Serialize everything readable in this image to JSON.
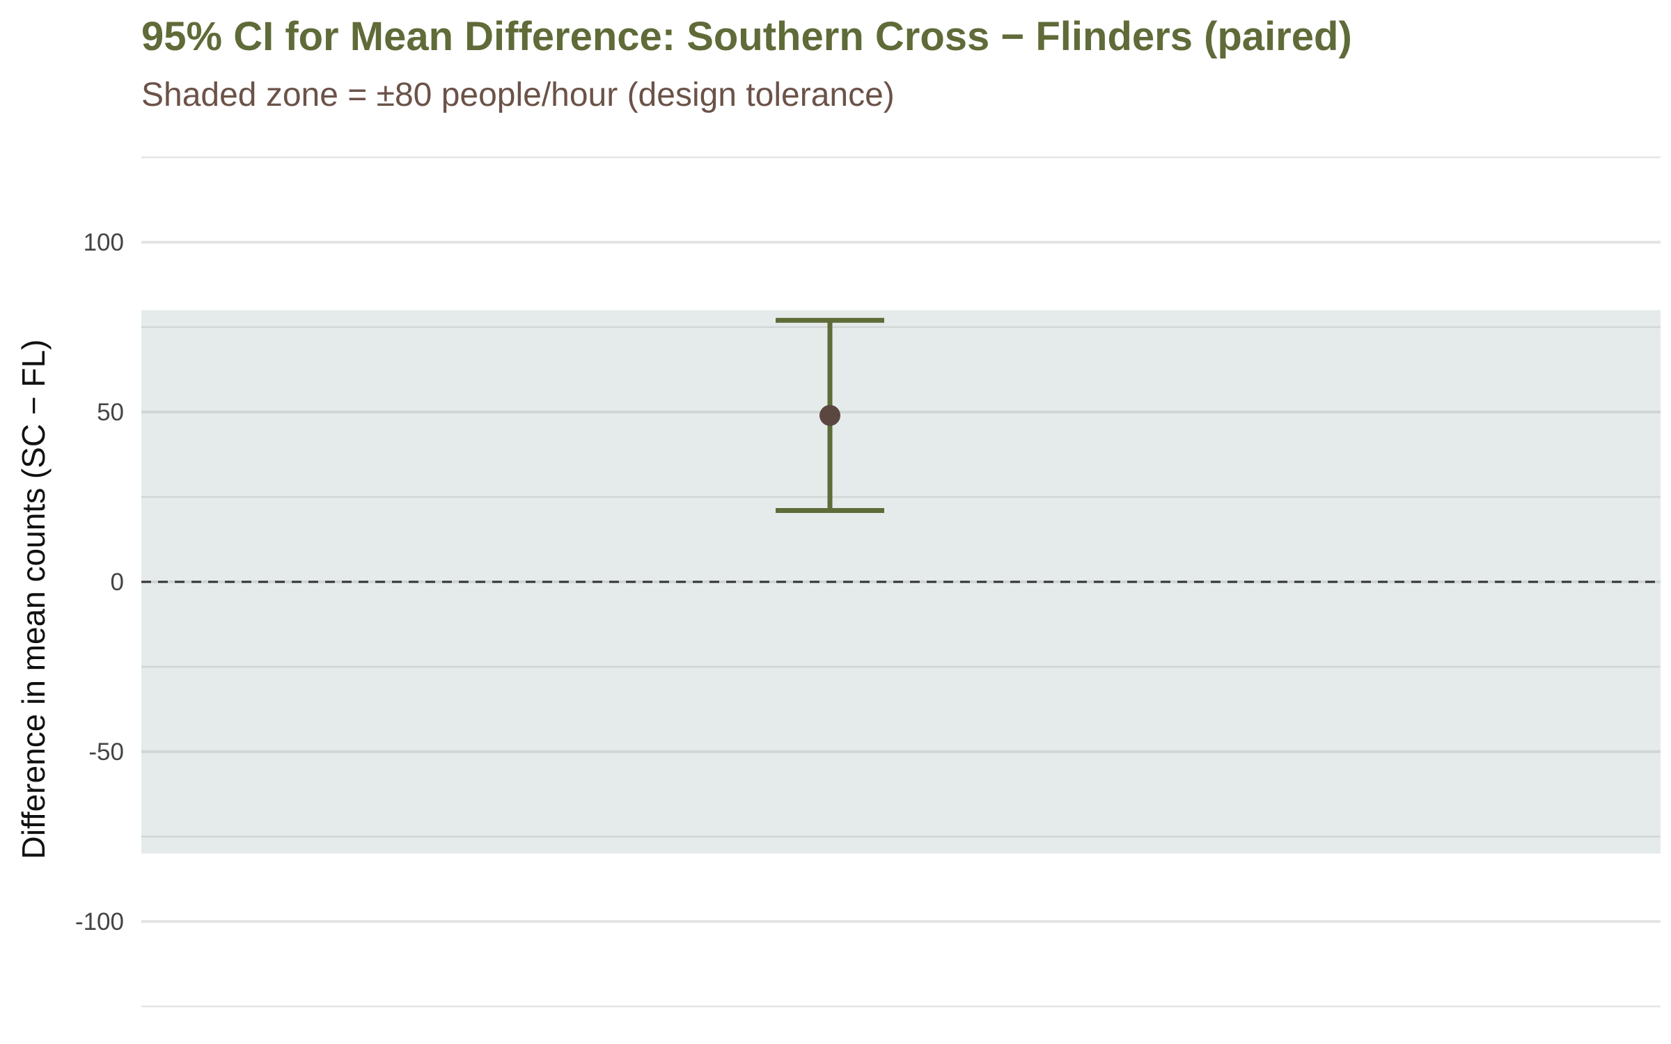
{
  "chart_data": {
    "type": "errorbar",
    "title": "95% CI for Mean Difference: Southern Cross − Flinders (paired)",
    "subtitle": "Shaded zone = ±80 people/hour (design tolerance)",
    "xlabel": "",
    "ylabel": "Difference in mean counts (SC − FL)",
    "ylim": [
      -125,
      125
    ],
    "y_ticks": [
      -100,
      -50,
      0,
      50,
      100
    ],
    "y_tick_labels": [
      "-100",
      "-50",
      "0",
      "50",
      "100"
    ],
    "grid": true,
    "estimate": 49,
    "ci_lower": 21,
    "ci_upper": 77,
    "tolerance_band": [
      -80,
      80
    ],
    "reference_line": 0,
    "colors": {
      "title": "#5f6b38",
      "subtitle": "#6b5248",
      "errorbar": "#5f6b38",
      "point": "#5b4640",
      "band": "#e5ebeb",
      "grid": "#e3e4e4",
      "band_grid": "#d0d6d6",
      "reference_line": "#333333",
      "tick_label": "#444444",
      "axis_title": "#111111"
    }
  }
}
